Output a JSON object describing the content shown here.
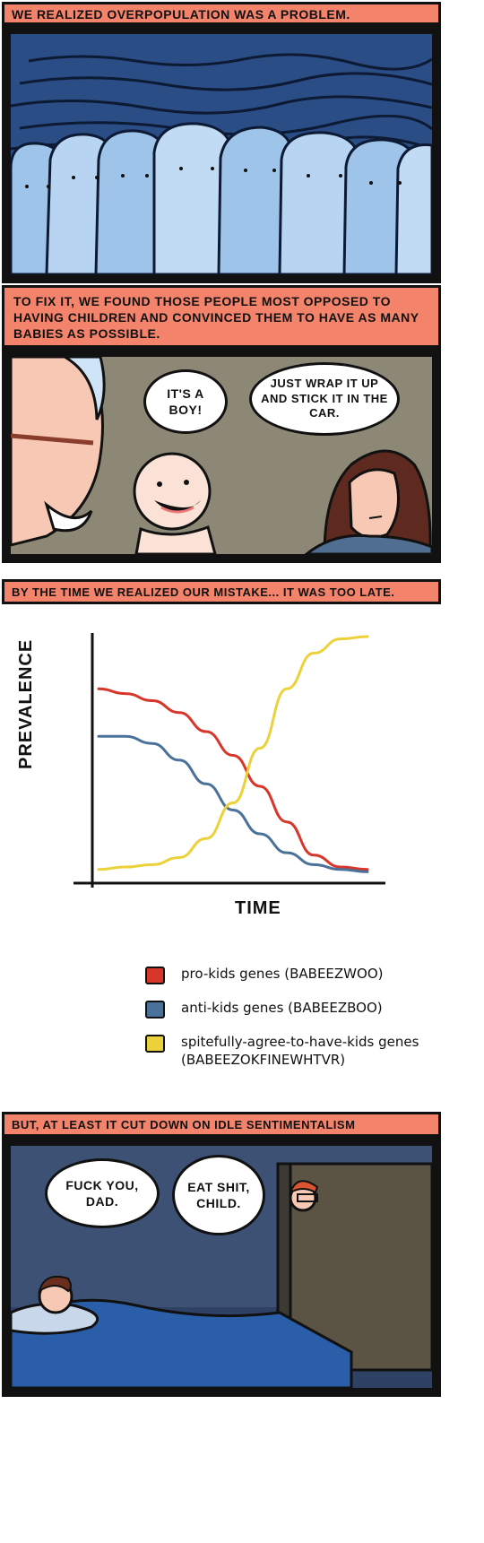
{
  "panel1": {
    "caption": "We realized overpopulation was a problem."
  },
  "panel2": {
    "caption": "To fix it, we found those people most opposed to having children and convinced them to have as many babies as possible.",
    "bubble_left": "It's a boy!",
    "bubble_right": "Just wrap it up and stick it in the car."
  },
  "panel3": {
    "caption": "By the time we realized our mistake... it was too late.",
    "chart_data": {
      "type": "line",
      "xlabel": "Time",
      "ylabel": "Prevalence",
      "x": [
        0,
        1,
        2,
        3,
        4,
        5,
        6,
        7,
        8,
        9,
        10
      ],
      "series": [
        {
          "name": "pro-kids genes (BABEEZWOO)",
          "color": "#d8362a",
          "values": [
            0.78,
            0.76,
            0.73,
            0.68,
            0.6,
            0.5,
            0.37,
            0.22,
            0.08,
            0.03,
            0.02
          ]
        },
        {
          "name": "anti-kids genes (BABEEZBOO)",
          "color": "#4a7199",
          "values": [
            0.58,
            0.58,
            0.55,
            0.48,
            0.38,
            0.27,
            0.17,
            0.09,
            0.04,
            0.02,
            0.01
          ]
        },
        {
          "name": "spitefully-agree-to-have-kids genes (BABEEZOKFINEWHTVR)",
          "color": "#ecd23a",
          "values": [
            0.02,
            0.03,
            0.04,
            0.07,
            0.15,
            0.3,
            0.53,
            0.78,
            0.93,
            0.99,
            1.0
          ]
        }
      ],
      "ylim": [
        0,
        1
      ],
      "grid": false,
      "legend_position": "bottom"
    }
  },
  "panel4": {
    "caption": "But, at least it cut down on idle sentimentalism",
    "bubble_left": "Fuck you, dad.",
    "bubble_right": "Eat shit, child."
  }
}
